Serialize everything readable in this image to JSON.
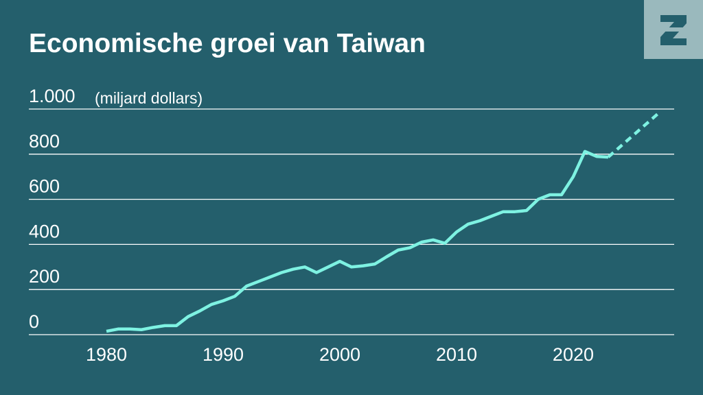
{
  "chart_data": {
    "type": "line",
    "title": "Economische groei van Taiwan",
    "y_label": "(miljard dollars)",
    "xlim": [
      1973.35,
      2028.65
    ],
    "xticks": [
      1980,
      1990,
      2000,
      2010,
      2020
    ],
    "ylim": [
      0,
      1000
    ],
    "yticks": [
      0,
      200,
      400,
      600,
      800,
      {
        "value": 1000,
        "label": "1.000"
      }
    ],
    "grid": true,
    "series": [
      {
        "color": "#7ef2e2",
        "style": "solid",
        "x": [
          1980,
          1981,
          1982,
          1983,
          1984,
          1985,
          1986,
          1987,
          1988,
          1989,
          1990,
          1991,
          1992,
          1993,
          1994,
          1995,
          1996,
          1997,
          1998,
          1999,
          2000,
          2001,
          2002,
          2003,
          2004,
          2005,
          2006,
          2007,
          2008,
          2009,
          2010,
          2011,
          2012,
          2013,
          2014,
          2015,
          2016,
          2017,
          2018,
          2019,
          2020,
          2021,
          2022,
          2023
        ],
        "values": [
          15,
          25,
          25,
          22,
          32,
          40,
          40,
          80,
          105,
          134,
          150,
          170,
          215,
          235,
          255,
          275,
          290,
          300,
          275,
          300,
          325,
          300,
          305,
          313,
          345,
          375,
          385,
          410,
          420,
          405,
          455,
          490,
          505,
          525,
          545,
          545,
          550,
          600,
          620,
          620,
          700,
          812,
          790,
          787
        ]
      },
      {
        "color": "#7ef2e2",
        "style": "dashed",
        "x": [
          2023,
          2027.5
        ],
        "values": [
          787,
          990
        ]
      }
    ]
  }
}
